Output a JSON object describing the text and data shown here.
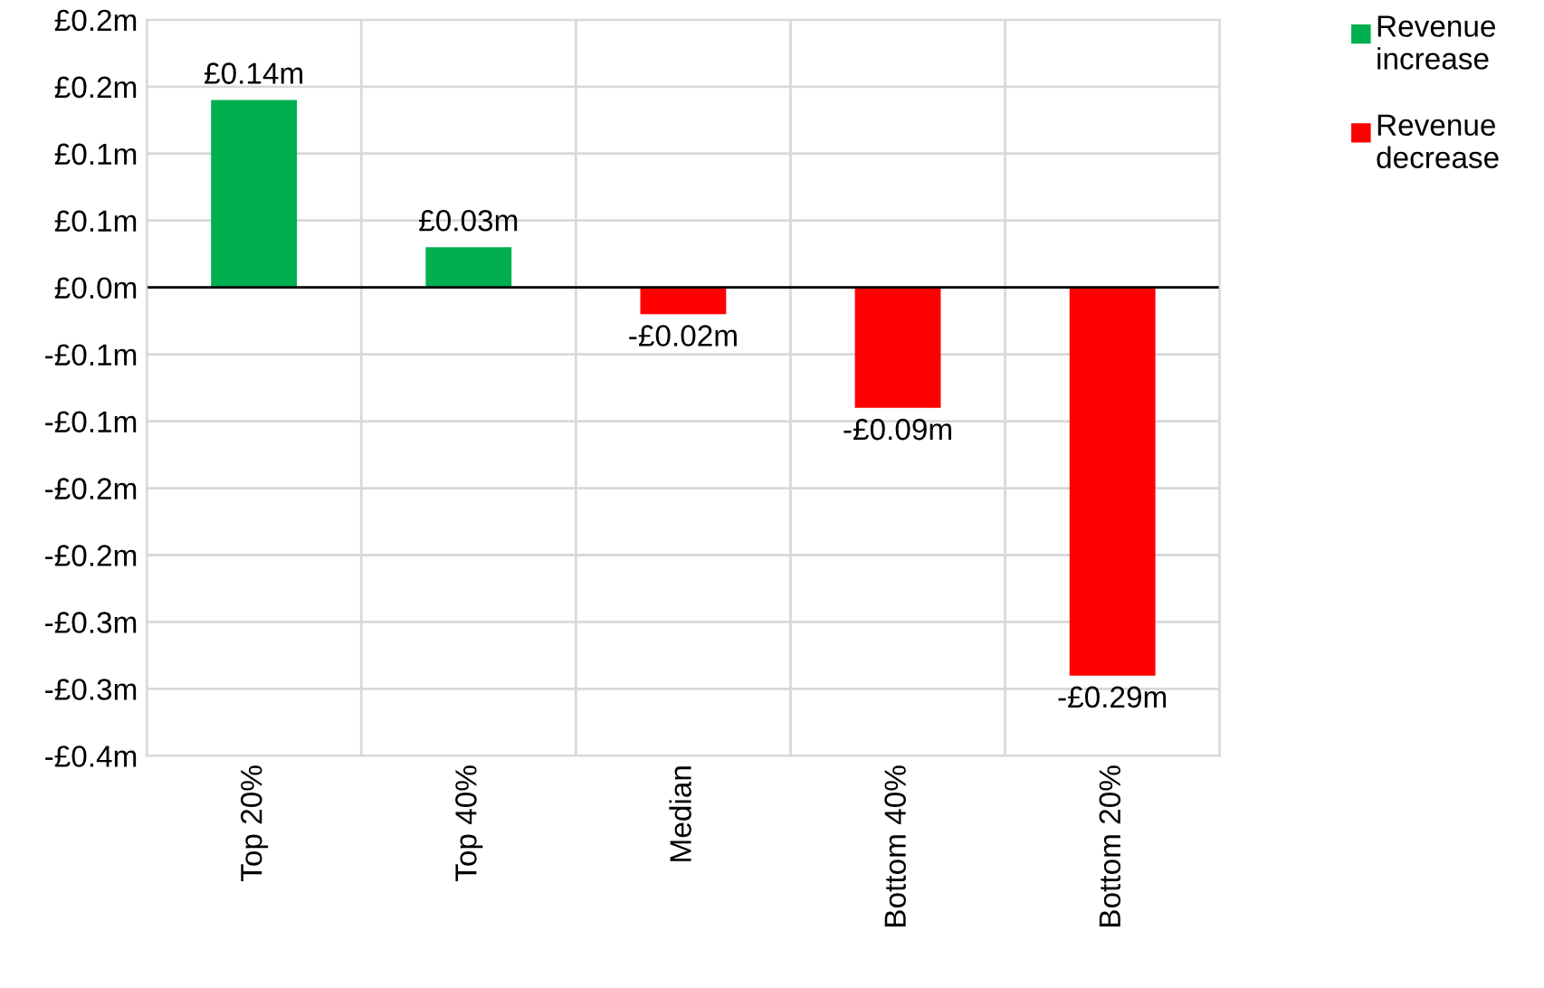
{
  "chart_data": {
    "type": "bar",
    "categories": [
      "Top 20%",
      "Top 40%",
      "Median",
      "Bottom 40%",
      "Bottom 20%"
    ],
    "series": [
      {
        "name": "Revenue increase",
        "color": "#00b050",
        "values": [
          0.14,
          0.03,
          null,
          null,
          null
        ],
        "value_labels": [
          "£0.14m",
          "£0.03m",
          null,
          null,
          null
        ]
      },
      {
        "name": "Revenue decrease",
        "color": "#ff0000",
        "values": [
          null,
          null,
          -0.02,
          -0.09,
          -0.29
        ],
        "value_labels": [
          null,
          null,
          "-£0.02m",
          "-£0.09m",
          "-£0.29m"
        ]
      }
    ],
    "ylim": [
      -0.35,
      0.2
    ],
    "yticks": [
      {
        "value": 0.2,
        "label": "£0.2m"
      },
      {
        "value": 0.15,
        "label": "£0.2m"
      },
      {
        "value": 0.1,
        "label": "£0.1m"
      },
      {
        "value": 0.05,
        "label": "£0.1m"
      },
      {
        "value": 0,
        "label": "£0.0m"
      },
      {
        "value": -0.05,
        "label": "-£0.1m"
      },
      {
        "value": -0.1,
        "label": "-£0.1m"
      },
      {
        "value": -0.15,
        "label": "-£0.2m"
      },
      {
        "value": -0.2,
        "label": "-£0.2m"
      },
      {
        "value": -0.25,
        "label": "-£0.3m"
      },
      {
        "value": -0.3,
        "label": "-£0.3m"
      },
      {
        "value": -0.35,
        "label": "-£0.4m"
      }
    ],
    "grid": true,
    "legend": "top right"
  }
}
